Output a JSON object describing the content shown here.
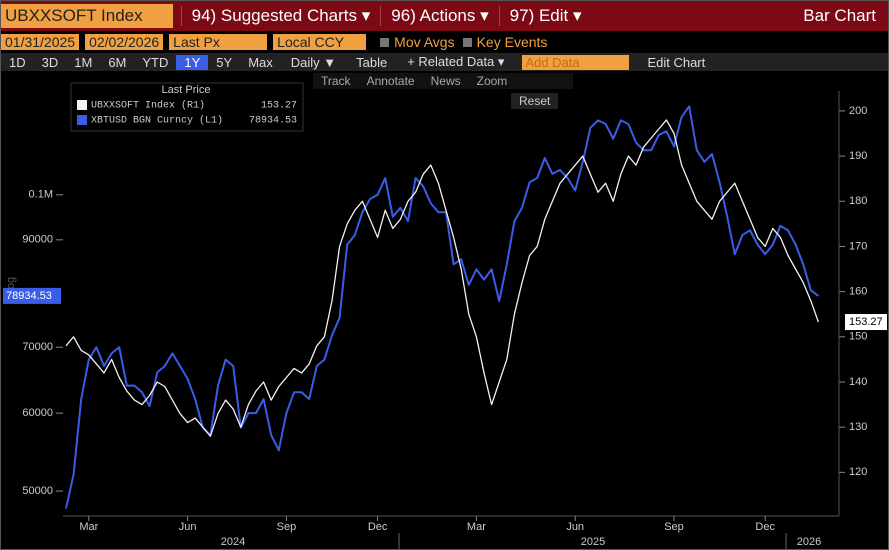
{
  "title_bar": {
    "security": "UBXXSOFT Index",
    "menus": [
      "94) Suggested Charts ▾",
      "96) Actions ▾",
      "97) Edit ▾"
    ],
    "mode": "Bar Chart"
  },
  "settings_bar": {
    "start": "01/31/2025",
    "end": "02/02/2026",
    "field": "Last Px",
    "currency": "Local CCY",
    "options": [
      "Mov Avgs",
      "Key Events"
    ]
  },
  "range_bar": {
    "periods": [
      "1D",
      "3D",
      "1M",
      "6M",
      "YTD",
      "1Y",
      "5Y",
      "Max"
    ],
    "selected_index": 5,
    "frequency": "Daily ▼",
    "table": "Table",
    "related": "+ Related Data ▾",
    "add_data": "Add Data",
    "edit": "Edit Chart"
  },
  "chart_tools": [
    "Track",
    "Annotate",
    "News",
    "Zoom"
  ],
  "reset": "Reset",
  "chart_data": {
    "type": "line",
    "legend_title": "Last Price",
    "scale_label": "Log",
    "log_scale": true,
    "grid": false,
    "categories": [
      null,
      null,
      null,
      "Mar",
      null,
      null,
      null,
      null,
      null,
      null,
      null,
      null,
      null,
      null,
      null,
      null,
      "Jun",
      null,
      null,
      null,
      null,
      null,
      null,
      null,
      null,
      null,
      null,
      null,
      null,
      "Sep",
      null,
      null,
      null,
      null,
      null,
      null,
      null,
      null,
      null,
      null,
      null,
      "Dec",
      null,
      null,
      null,
      null,
      null,
      null,
      null,
      null,
      null,
      null,
      null,
      null,
      "Mar",
      null,
      null,
      null,
      null,
      null,
      null,
      null,
      null,
      null,
      null,
      null,
      null,
      "Jun",
      null,
      null,
      null,
      null,
      null,
      null,
      null,
      null,
      null,
      null,
      null,
      null,
      "Sep",
      null,
      null,
      null,
      null,
      null,
      null,
      null,
      null,
      null,
      null,
      null,
      "Dec",
      null,
      null,
      null,
      null,
      null,
      null,
      null
    ],
    "x_years": [
      "2024",
      "2025",
      "2026"
    ],
    "series": [
      {
        "name": "UBXXSOFT Index (R1)",
        "color": "#f2f2f2",
        "axis": "y2",
        "values": [
          148,
          150,
          147,
          146,
          144,
          142,
          145,
          141,
          138,
          136,
          135,
          137,
          140,
          139,
          136,
          133,
          131,
          132,
          130,
          128,
          133,
          136,
          134,
          130,
          135,
          138,
          140,
          136,
          139,
          141,
          143,
          142,
          144,
          148,
          150,
          158,
          170,
          175,
          178,
          180,
          176,
          172,
          178,
          174,
          176,
          180,
          182,
          186,
          188,
          184,
          178,
          172,
          165,
          155,
          150,
          142,
          135,
          140,
          145,
          155,
          162,
          168,
          170,
          176,
          180,
          184,
          186,
          188,
          190,
          186,
          182,
          184,
          180,
          186,
          190,
          188,
          192,
          194,
          196,
          198,
          195,
          188,
          184,
          180,
          178,
          176,
          180,
          182,
          184,
          180,
          176,
          172,
          170,
          174,
          172,
          168,
          165,
          162,
          158,
          153.27
        ]
      },
      {
        "name": "XBTUSD BGN Curncy (L1)",
        "color": "#3b5ce6",
        "axis": "y",
        "values": [
          48000,
          52000,
          62000,
          68000,
          70000,
          67000,
          69000,
          70000,
          64000,
          64000,
          63000,
          61000,
          66000,
          67000,
          69000,
          67000,
          65000,
          62000,
          58000,
          57000,
          64000,
          68000,
          67000,
          58000,
          60000,
          60000,
          62000,
          57000,
          55000,
          60000,
          63000,
          63000,
          62000,
          67000,
          68000,
          72000,
          75000,
          89000,
          91000,
          96000,
          99000,
          100000,
          104000,
          95000,
          97000,
          94000,
          104000,
          102000,
          98000,
          96000,
          96000,
          85000,
          86000,
          81000,
          84000,
          82000,
          84000,
          78000,
          85000,
          94000,
          97000,
          103000,
          104000,
          109000,
          105000,
          106000,
          104000,
          101000,
          108000,
          117000,
          119000,
          118000,
          114000,
          119000,
          118000,
          113000,
          111000,
          111000,
          115000,
          116000,
          112000,
          120000,
          123000,
          111000,
          108000,
          110000,
          103000,
          95000,
          87000,
          91000,
          92000,
          89000,
          87000,
          89000,
          93000,
          92000,
          89000,
          85000,
          80000,
          78934.53
        ]
      }
    ],
    "ylim": [
      47500,
      126000
    ],
    "yticks": [
      50000,
      60000,
      70000,
      90000,
      {
        "value": 100000,
        "label": "0.1M"
      }
    ],
    "y2lim": [
      111,
      203.3
    ],
    "y2ticks": [
      120,
      130,
      140,
      150,
      160,
      170,
      180,
      190,
      200
    ]
  }
}
